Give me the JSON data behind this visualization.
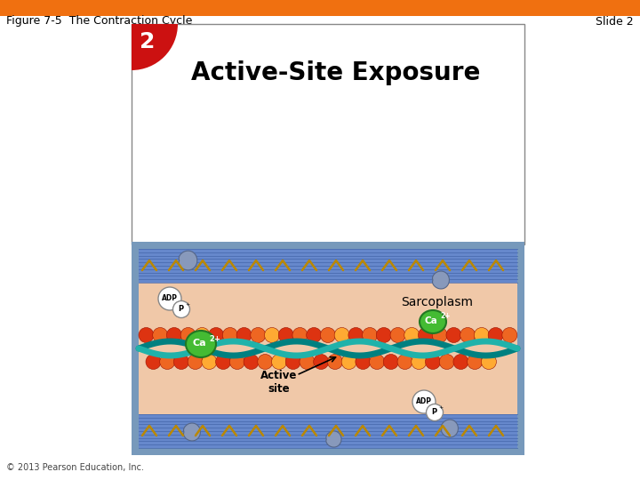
{
  "title_left": "Figure 7-5  The Contraction Cycle",
  "title_right": "Slide 2",
  "slide_title": "Active-Site Exposure",
  "slide_number": "2",
  "slide_number_bg": "#CC1111",
  "label_sarcoplasm": "Sarcoplasm",
  "label_active_site": "Active\nsite",
  "copyright": "© 2013 Pearson Education, Inc.",
  "bg_color": "#FFFFFF",
  "orange_header_color": "#F07010",
  "upper_box_border": "#888888",
  "panel_border_color": "#7799BB",
  "panel_fill_color": "#99AABB",
  "sarcoplasm_bg": "#F0C8A8",
  "stripe_dark": "#4466AA",
  "stripe_light": "#6688CC",
  "actin_red": "#DD3311",
  "actin_orange": "#EE6622",
  "actin_yellow": "#FFAA33",
  "tropomyosin_dark": "#008080",
  "tropomyosin_light": "#20B2AA",
  "ca_green": "#44BB33",
  "ca_green_edge": "#227722",
  "myosin_blue": "#8899BB",
  "myosin_blue_edge": "#556688",
  "adp_fill": "#FFFFFF",
  "adp_edge": "#888888",
  "zigzag_color": "#BB8800",
  "title_fontsize": 9,
  "slide_title_fontsize": 20
}
